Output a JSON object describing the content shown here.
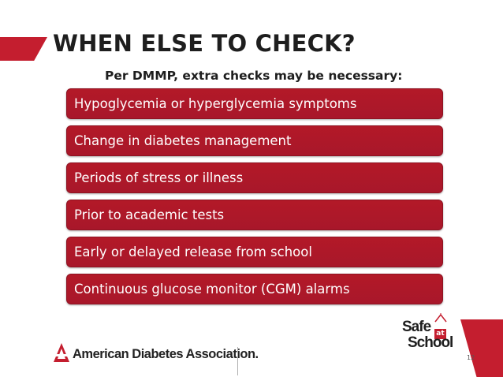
{
  "slide": {
    "title": "WHEN ELSE TO CHECK?",
    "subtitle": "Per DMMP, extra checks may be necessary:",
    "items": [
      {
        "label": "Hypoglycemia or hyperglycemia symptoms"
      },
      {
        "label": "Change in diabetes management"
      },
      {
        "label": "Periods of stress or illness"
      },
      {
        "label": "Prior to academic tests"
      },
      {
        "label": "Early or delayed release from school"
      },
      {
        "label": "Continuous glucose monitor (CGM) alarms"
      }
    ],
    "page_number": "12"
  },
  "footer": {
    "ada_logo": {
      "text": "American Diabetes Association.",
      "icon": "ada-triangle-icon"
    },
    "safe_at_school_logo": {
      "line1": "Safe",
      "at": "at",
      "line2": "School",
      "icon": "schoolhouse-icon"
    }
  },
  "colors": {
    "accent": "#c41e2f",
    "item_fill": "#ae1829",
    "text_dark": "#1e1e1e"
  }
}
